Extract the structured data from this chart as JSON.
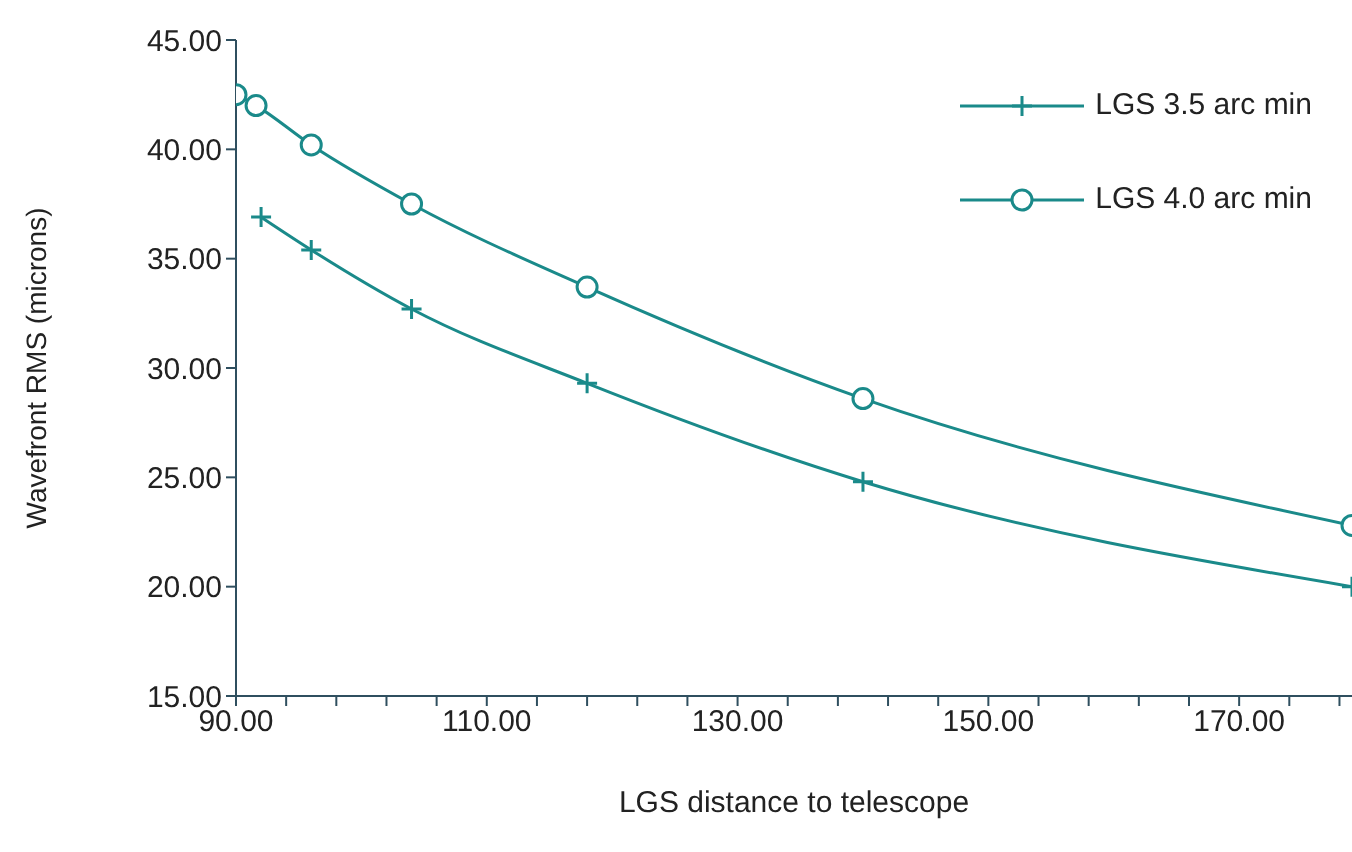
{
  "chart_data": {
    "type": "line",
    "xlabel": "LGS distance to telescope",
    "ylabel": "Wavefront RMS (microns)",
    "xlim": [
      90,
      179
    ],
    "xticks": [
      {
        "value": 90,
        "label": "90.00"
      },
      {
        "value": 94,
        "label": null
      },
      {
        "value": 98,
        "label": null
      },
      {
        "value": 102,
        "label": null
      },
      {
        "value": 106,
        "label": null
      },
      {
        "value": 110,
        "label": "110.00"
      },
      {
        "value": 114,
        "label": null
      },
      {
        "value": 118,
        "label": null
      },
      {
        "value": 122,
        "label": null
      },
      {
        "value": 126,
        "label": null
      },
      {
        "value": 130,
        "label": "130.00"
      },
      {
        "value": 134,
        "label": null
      },
      {
        "value": 138,
        "label": null
      },
      {
        "value": 142,
        "label": null
      },
      {
        "value": 146,
        "label": null
      },
      {
        "value": 150,
        "label": "150.00"
      },
      {
        "value": 154,
        "label": null
      },
      {
        "value": 158,
        "label": null
      },
      {
        "value": 162,
        "label": null
      },
      {
        "value": 166,
        "label": null
      },
      {
        "value": 170,
        "label": "170.00"
      },
      {
        "value": 174,
        "label": null
      },
      {
        "value": 178,
        "label": null
      }
    ],
    "ylim": [
      15,
      45
    ],
    "yticks": [
      {
        "value": 15,
        "label": "15.00"
      },
      {
        "value": 20,
        "label": "20.00"
      },
      {
        "value": 25,
        "label": "25.00"
      },
      {
        "value": 30,
        "label": "30.00"
      },
      {
        "value": 35,
        "label": "35.00"
      },
      {
        "value": 40,
        "label": "40.00"
      },
      {
        "value": 45,
        "label": "45.00"
      }
    ],
    "grid": false,
    "legend": "top right",
    "line_style": "solid",
    "series": [
      {
        "name": "LGS 3.5 arc min",
        "color": "#1a8a8a",
        "marker": "cross",
        "x": [
          92,
          96,
          104,
          118,
          140,
          179
        ],
        "values": [
          36.9,
          35.4,
          32.7,
          29.3,
          24.8,
          20.0
        ]
      },
      {
        "name": "LGS 4.0 arc min",
        "color": "#1a8a8a",
        "marker": "circle",
        "x": [
          90,
          91.6,
          96,
          104,
          118,
          140,
          179
        ],
        "values": [
          42.5,
          42.0,
          40.2,
          37.5,
          33.7,
          28.6,
          22.8
        ]
      }
    ]
  }
}
